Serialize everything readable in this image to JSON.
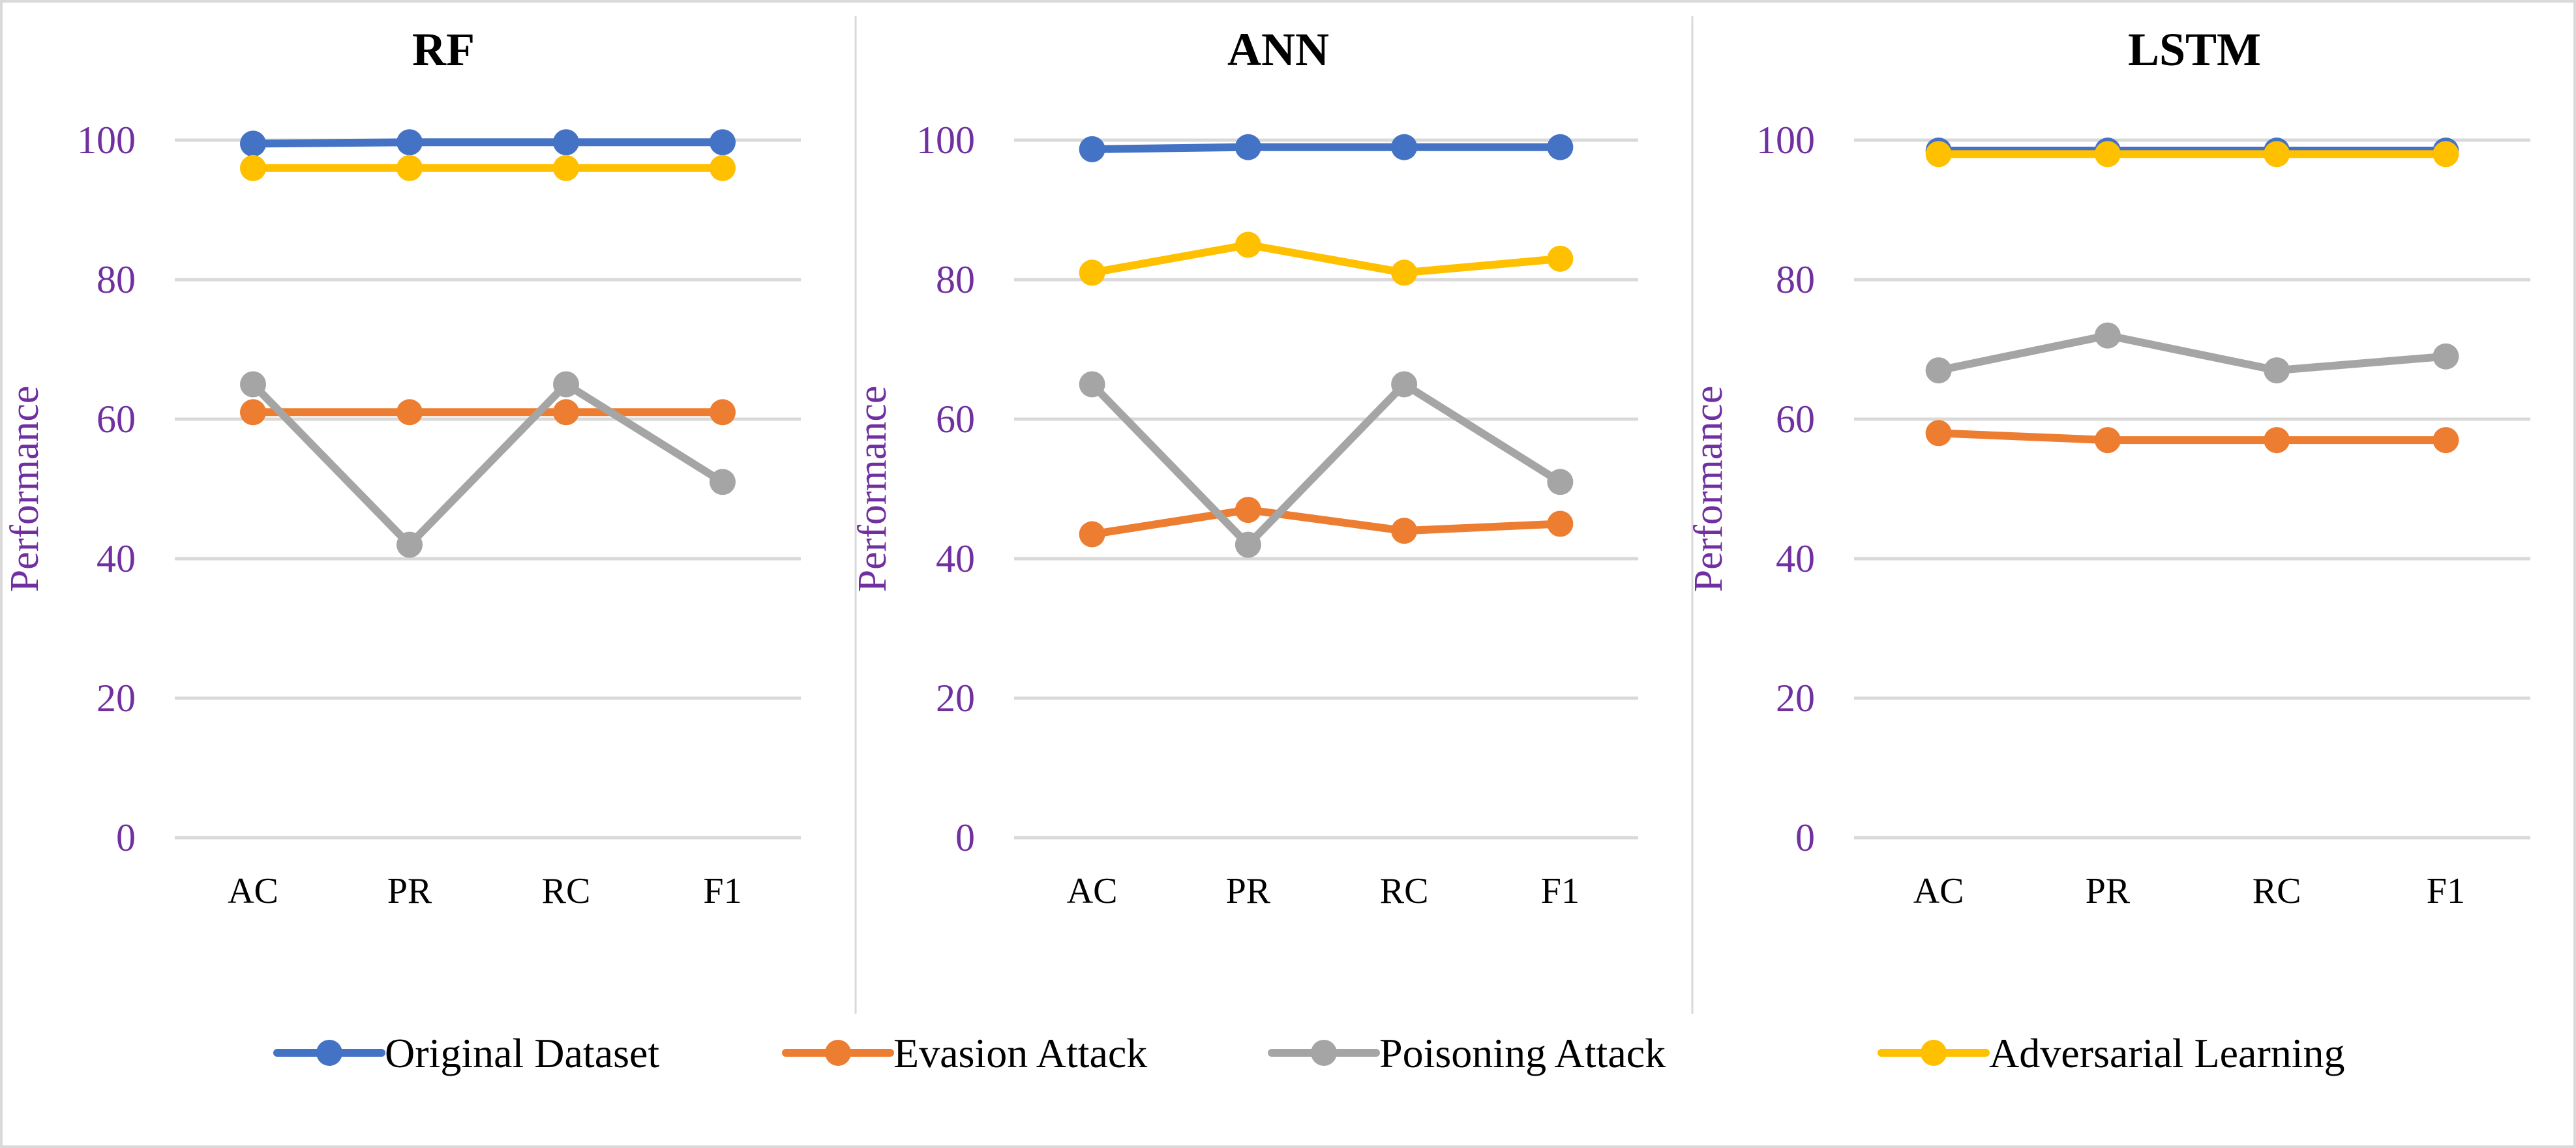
{
  "figure_title": "",
  "colors": {
    "axis_text": "#7030A0",
    "gridline": "#D9D9D9",
    "border": "#D9D9D9",
    "title": "#000000",
    "category_text": "#000000"
  },
  "legend": {
    "items": [
      {
        "label": "Original Dataset",
        "color": "#4472C4"
      },
      {
        "label": "Evasion Attack",
        "color": "#ED7D31"
      },
      {
        "label": "Poisoning Attack",
        "color": "#A5A5A5"
      },
      {
        "label": "Adversarial Learning",
        "color": "#FFC000"
      }
    ]
  },
  "chart_data": [
    {
      "type": "line",
      "title": "RF",
      "xlabel": "",
      "ylabel": "Performance",
      "ylim": [
        0,
        100
      ],
      "yticks": [
        "0",
        "20",
        "40",
        "60",
        "80",
        "100"
      ],
      "categories": [
        "AC",
        "PR",
        "RC",
        "F1"
      ],
      "series": [
        {
          "name": "Original Dataset",
          "values": [
            99.5,
            99.7,
            99.7,
            99.7
          ]
        },
        {
          "name": "Evasion Attack",
          "values": [
            61,
            61,
            61,
            61
          ]
        },
        {
          "name": "Poisoning Attack",
          "values": [
            65,
            42,
            65,
            51
          ]
        },
        {
          "name": "Adversarial Learning",
          "values": [
            96,
            96,
            96,
            96
          ]
        }
      ]
    },
    {
      "type": "line",
      "title": "ANN",
      "xlabel": "",
      "ylabel": "Performance",
      "ylim": [
        0,
        100
      ],
      "yticks": [
        "0",
        "20",
        "40",
        "60",
        "80",
        "100"
      ],
      "categories": [
        "AC",
        "PR",
        "RC",
        "F1"
      ],
      "series": [
        {
          "name": "Original Dataset",
          "values": [
            98.7,
            99,
            99,
            99
          ]
        },
        {
          "name": "Evasion Attack",
          "values": [
            43.5,
            47,
            44,
            45
          ]
        },
        {
          "name": "Poisoning Attack",
          "values": [
            65,
            42,
            65,
            51
          ]
        },
        {
          "name": "Adversarial Learning",
          "values": [
            81,
            85,
            81,
            83
          ]
        }
      ]
    },
    {
      "type": "line",
      "title": "LSTM",
      "xlabel": "",
      "ylabel": "Performance",
      "ylim": [
        0,
        100
      ],
      "yticks": [
        "0",
        "20",
        "40",
        "60",
        "80",
        "100"
      ],
      "categories": [
        "AC",
        "PR",
        "RC",
        "F1"
      ],
      "series": [
        {
          "name": "Original Dataset",
          "values": [
            98.5,
            98.5,
            98.5,
            98.5
          ]
        },
        {
          "name": "Evasion Attack",
          "values": [
            58,
            57,
            57,
            57
          ]
        },
        {
          "name": "Poisoning Attack",
          "values": [
            67,
            72,
            67,
            69
          ]
        },
        {
          "name": "Adversarial Learning",
          "values": [
            98,
            98,
            98,
            98
          ]
        }
      ]
    }
  ]
}
